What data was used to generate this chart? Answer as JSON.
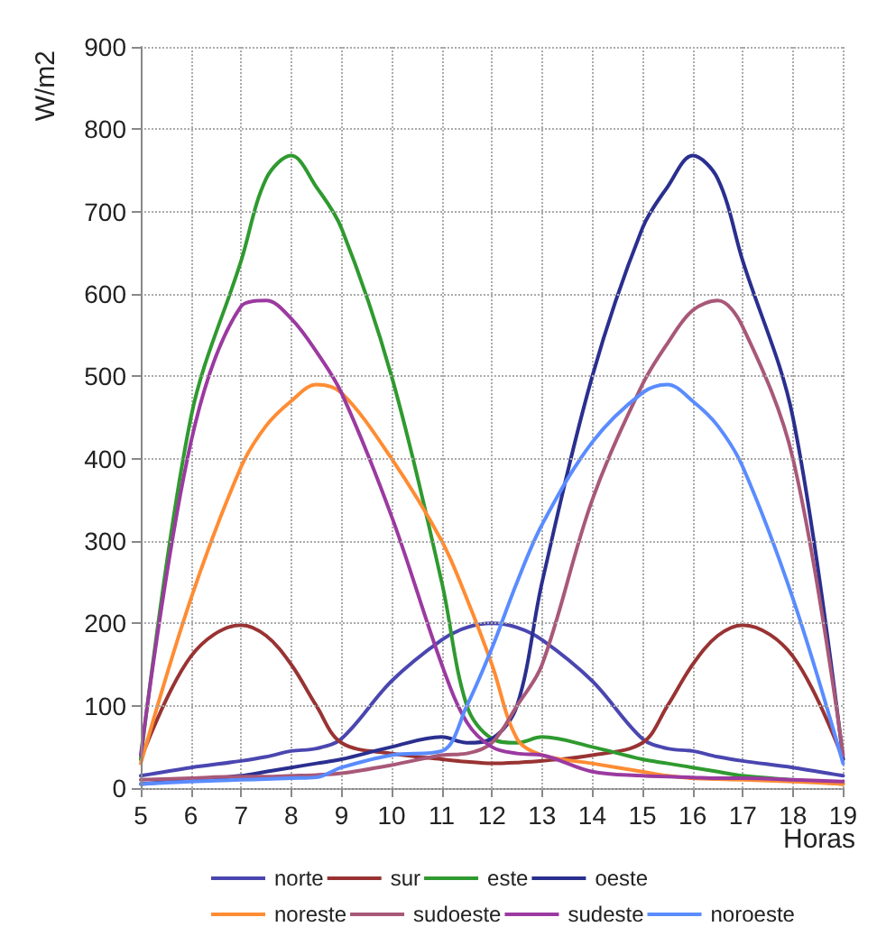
{
  "chart_data": {
    "type": "line",
    "xlabel": "Horas",
    "ylabel": "W/m2",
    "x": [
      5,
      6,
      7,
      7.5,
      8,
      8.5,
      9,
      10,
      11,
      11.5,
      12,
      12.5,
      13,
      14,
      15,
      15.5,
      16,
      16.5,
      17,
      18,
      19
    ],
    "xlim": [
      5,
      19
    ],
    "xticks": [
      5,
      6,
      7,
      8,
      9,
      10,
      11,
      12,
      13,
      14,
      15,
      16,
      17,
      18,
      19
    ],
    "ylim": [
      0,
      900
    ],
    "yticks": [
      0,
      100,
      200,
      300,
      400,
      500,
      600,
      700,
      800,
      900
    ],
    "grid": true,
    "legend": "bottom",
    "marker": "none",
    "line_style": "solid",
    "series": [
      {
        "name": "norte",
        "color": "#4a46b0",
        "values": [
          15,
          25,
          33,
          38,
          45,
          48,
          60,
          130,
          180,
          195,
          200,
          195,
          180,
          130,
          60,
          48,
          45,
          38,
          33,
          25,
          15
        ]
      },
      {
        "name": "sur",
        "color": "#993333",
        "values": [
          35,
          160,
          198,
          185,
          150,
          100,
          55,
          42,
          35,
          32,
          30,
          31,
          33,
          40,
          55,
          100,
          150,
          185,
          198,
          160,
          35
        ]
      },
      {
        "name": "este",
        "color": "#2f9a2f",
        "values": [
          35,
          450,
          640,
          740,
          768,
          730,
          680,
          500,
          250,
          100,
          60,
          55,
          62,
          50,
          35,
          30,
          25,
          20,
          15,
          10,
          5
        ]
      },
      {
        "name": "oeste",
        "color": "#2a2f8f",
        "values": [
          5,
          10,
          15,
          20,
          25,
          30,
          35,
          50,
          62,
          55,
          60,
          100,
          250,
          500,
          680,
          730,
          768,
          740,
          640,
          450,
          35
        ]
      },
      {
        "name": "noreste",
        "color": "#ff8c33",
        "values": [
          30,
          230,
          390,
          440,
          470,
          490,
          480,
          400,
          300,
          230,
          150,
          60,
          40,
          30,
          20,
          15,
          12,
          11,
          10,
          8,
          5
        ]
      },
      {
        "name": "sudoeste",
        "color": "#a85878",
        "values": [
          10,
          12,
          14,
          14,
          15,
          16,
          18,
          28,
          40,
          42,
          55,
          100,
          150,
          350,
          490,
          540,
          580,
          592,
          560,
          400,
          40
        ]
      },
      {
        "name": "sudeste",
        "color": "#9b3aa0",
        "values": [
          40,
          420,
          585,
          592,
          570,
          530,
          480,
          330,
          150,
          80,
          50,
          42,
          40,
          20,
          15,
          14,
          13,
          12,
          12,
          10,
          8
        ]
      },
      {
        "name": "noroeste",
        "color": "#5a8cff",
        "values": [
          5,
          8,
          10,
          11,
          12,
          13,
          25,
          40,
          45,
          100,
          170,
          250,
          320,
          420,
          480,
          490,
          470,
          440,
          390,
          230,
          30
        ]
      }
    ]
  }
}
